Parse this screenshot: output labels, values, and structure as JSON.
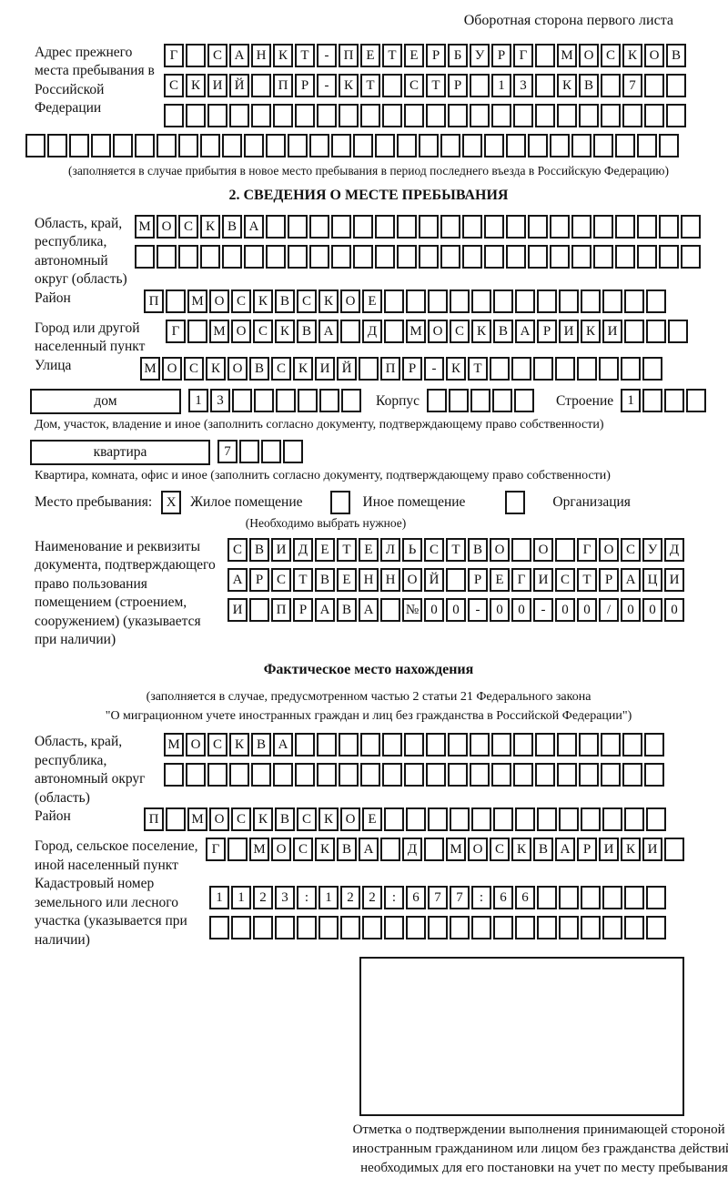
{
  "page_header": "Оборотная сторона первого листа",
  "prev_address": {
    "label": "Адрес прежнего места пребывания в Российской Федерации",
    "row1": "Г САНКТ-ПЕТЕРБУРГ МОСКОВ",
    "row2": "СКИЙ ПР-КТ СТР 13 КВ 7  ",
    "row3": "                        ",
    "row4": "                              ",
    "note": "(заполняется в случае прибытия в новое место пребывания в период последнего въезда в Российскую Федерацию)"
  },
  "section2": {
    "title": "2. СВЕДЕНИЯ О МЕСТЕ ПРЕБЫВАНИЯ",
    "oblast": {
      "label": "Область, край, республика, автономный округ (область)",
      "row1": "МОСКВА                    ",
      "row2": "                          "
    },
    "rayon": {
      "label": "Район",
      "row": "П МОСКВСКОЕ             "
    },
    "gorod": {
      "label": "Город или другой населенный пункт",
      "row": "Г МОСКВА Д МОСКВАРИКИ   "
    },
    "ulitsa": {
      "label": "Улица",
      "row": "МОСКОВСКИЙ ПР-КТ        "
    },
    "dom": {
      "label": "дом",
      "cells": "13      ",
      "korpus_label": "Корпус",
      "korpus_cells": "     ",
      "stroenie_label": "Строение",
      "stroenie_cells": "1   "
    },
    "dom_note": "Дом, участок, владение и иное (заполнить согласно документу, подтверждающему право собственности)",
    "kvartira": {
      "label": "квартира",
      "cells": "7   "
    },
    "kvartira_note": "Квартира, комната, офис и иное (заполнить согласно документу, подтверждающему право собственности)",
    "mesto": {
      "label": "Место пребывания:",
      "options": [
        {
          "label": "Жилое помещение",
          "checked": "X"
        },
        {
          "label": "Иное помещение",
          "checked": " "
        },
        {
          "label": "Организация",
          "checked": " "
        }
      ],
      "note": "(Необходимо выбрать нужное)"
    },
    "document": {
      "label": "Наименование и реквизиты документа, подтверждающего право пользования помещением (строением, сооружением) (указывается при наличии)",
      "row1": "СВИДЕТЕЛЬСТВО О ГОСУД",
      "row2": "АРСТВЕННОЙ РЕГИСТРАЦИ",
      "row3": "И ПРАВА №00-00-00/000"
    }
  },
  "fact": {
    "title": "Фактическое место нахождения",
    "note_line1": "(заполняется в случае, предусмотренном частью 2 статьи 21 Федерального закона",
    "note_line2": "\"О миграционном учете иностранных граждан и лиц без гражданства в Российской Федерации\")",
    "oblast": {
      "label": "Область, край, республика, автономный округ (область)",
      "row1": "МОСКВА                 ",
      "row2": "                       "
    },
    "rayon": {
      "label": "Район",
      "row": "П МОСКВСКОЕ             "
    },
    "gorod": {
      "label": "Город, сельское поселение, иной населенный пункт",
      "row": "Г МОСКВА Д МОСКВАРИКИ "
    },
    "kadastr": {
      "label": "Кадастровый номер земельного или лесного участка (указывается при наличии)",
      "row1": "1123:122:677:66      ",
      "row2": "                     "
    },
    "stamp_caption": "Отметка о подтверждении выполнения принимающей стороной и иностранным гражданином или лицом без гражданства действий, необходимых для его постановки на учет по месту пребывания"
  }
}
